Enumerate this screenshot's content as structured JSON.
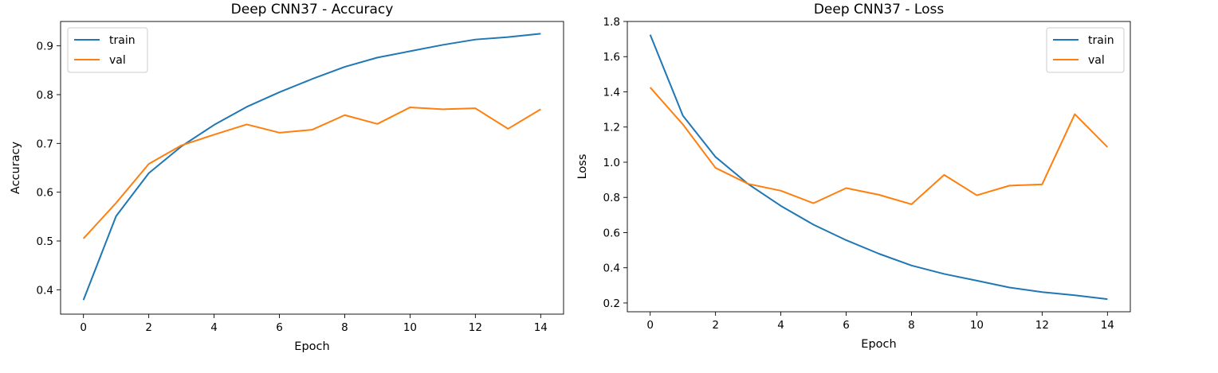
{
  "colors": {
    "train": "#1f77b4",
    "val": "#ff7f0e"
  },
  "chart_data": [
    {
      "type": "line",
      "title": "Deep CNN37 - Accuracy",
      "xlabel": "Epoch",
      "ylabel": "Accuracy",
      "x": [
        0,
        1,
        2,
        3,
        4,
        5,
        6,
        7,
        8,
        9,
        10,
        11,
        12,
        13,
        14
      ],
      "xlim": [
        -0.7,
        14.7
      ],
      "ylim": [
        0.35,
        0.95
      ],
      "xticks": [
        0,
        2,
        4,
        6,
        8,
        10,
        12,
        14
      ],
      "yticks": [
        0.4,
        0.5,
        0.6,
        0.7,
        0.8,
        0.9
      ],
      "yticklabels": [
        "0.4",
        "0.5",
        "0.6",
        "0.7",
        "0.8",
        "0.9"
      ],
      "legend_position": "top-left",
      "grid": false,
      "series": [
        {
          "name": "train",
          "values": [
            0.379,
            0.551,
            0.639,
            0.694,
            0.738,
            0.775,
            0.805,
            0.832,
            0.857,
            0.876,
            0.889,
            0.902,
            0.913,
            0.918,
            0.925
          ]
        },
        {
          "name": "val",
          "values": [
            0.505,
            0.578,
            0.658,
            0.696,
            0.718,
            0.739,
            0.722,
            0.728,
            0.758,
            0.74,
            0.774,
            0.77,
            0.772,
            0.73,
            0.77
          ]
        }
      ]
    },
    {
      "type": "line",
      "title": "Deep CNN37 - Loss",
      "xlabel": "Epoch",
      "ylabel": "Loss",
      "x": [
        0,
        1,
        2,
        3,
        4,
        5,
        6,
        7,
        8,
        9,
        10,
        11,
        12,
        13,
        14
      ],
      "xlim": [
        -0.7,
        14.7
      ],
      "ylim": [
        0.15,
        1.8
      ],
      "xticks": [
        0,
        2,
        4,
        6,
        8,
        10,
        12,
        14
      ],
      "yticks": [
        0.2,
        0.4,
        0.6,
        0.8,
        1.0,
        1.2,
        1.4,
        1.6,
        1.8
      ],
      "yticklabels": [
        "0.2",
        "0.4",
        "0.6",
        "0.8",
        "1.0",
        "1.2",
        "1.4",
        "1.6",
        "1.8"
      ],
      "legend_position": "top-right",
      "grid": false,
      "series": [
        {
          "name": "train",
          "values": [
            1.725,
            1.265,
            1.03,
            0.876,
            0.752,
            0.645,
            0.557,
            0.48,
            0.413,
            0.365,
            0.327,
            0.288,
            0.262,
            0.244,
            0.222
          ]
        },
        {
          "name": "val",
          "values": [
            1.425,
            1.215,
            0.968,
            0.877,
            0.838,
            0.767,
            0.853,
            0.815,
            0.761,
            0.928,
            0.812,
            0.867,
            0.874,
            1.273,
            1.086
          ]
        }
      ]
    }
  ]
}
